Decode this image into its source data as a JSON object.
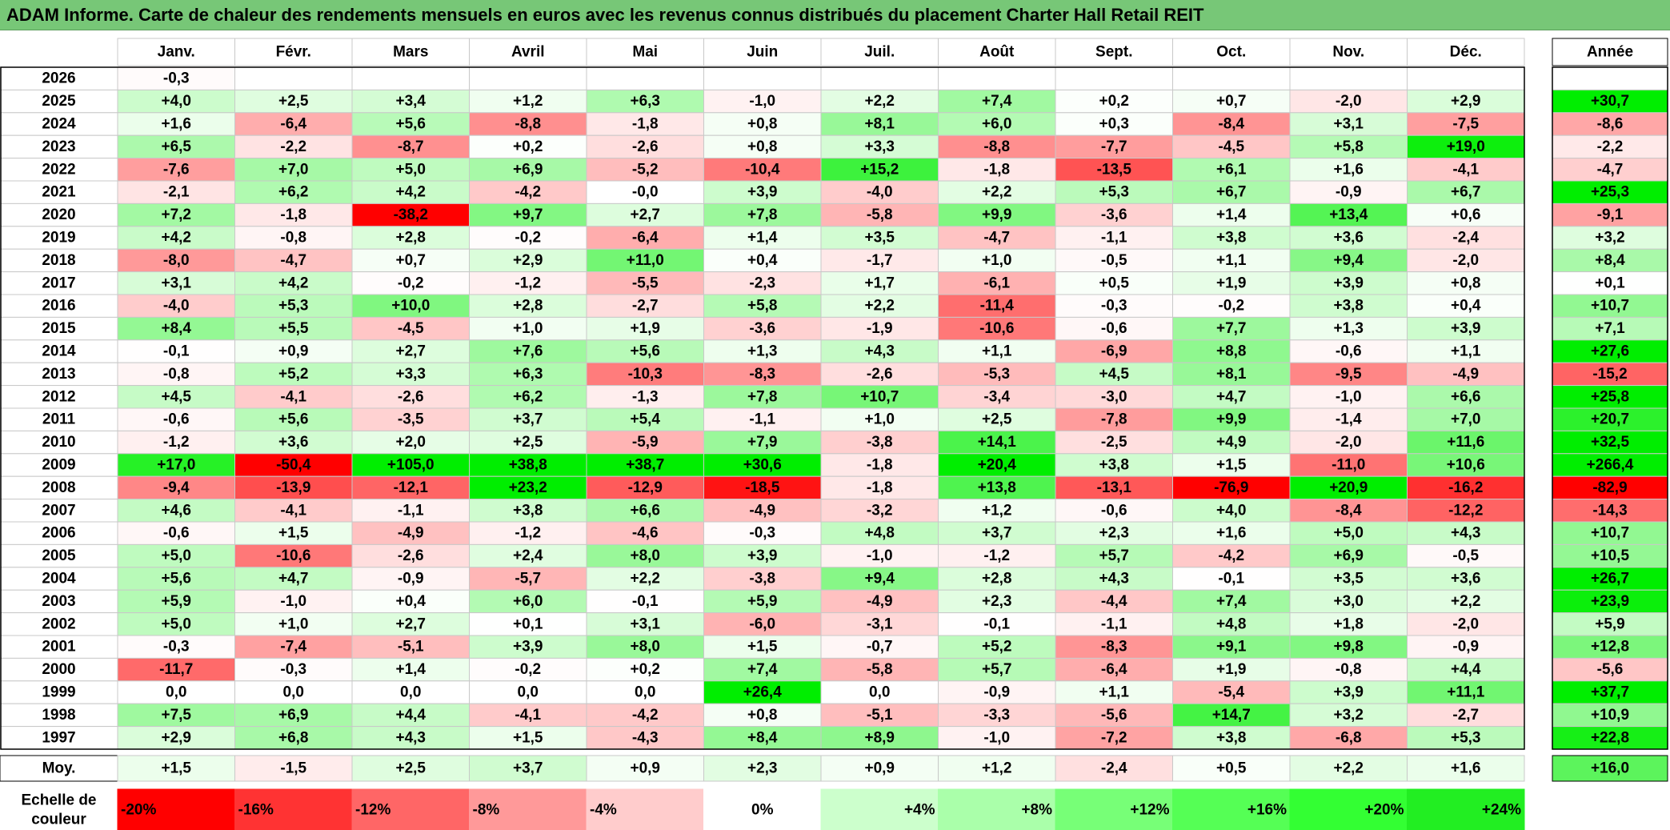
{
  "title": "ADAM Informe. Carte de chaleur des rendements mensuels en euros avec les revenus connus distribués du placement Charter Hall Retail REIT",
  "chart_data": {
    "type": "heatmap",
    "months": [
      "Janv.",
      "Févr.",
      "Mars",
      "Avril",
      "Mai",
      "Juin",
      "Juil.",
      "Août",
      "Sept.",
      "Oct.",
      "Nov.",
      "Déc."
    ],
    "annual_header": "Année",
    "rows": [
      {
        "year": "2026",
        "values": [
          "-0,3",
          "",
          "",
          "",
          "",
          "",
          "",
          "",
          "",
          "",
          "",
          ""
        ],
        "annual": ""
      },
      {
        "year": "2025",
        "values": [
          "+4,0",
          "+2,5",
          "+3,4",
          "+1,2",
          "+6,3",
          "-1,0",
          "+2,2",
          "+7,4",
          "+0,2",
          "+0,7",
          "-2,0",
          "+2,9"
        ],
        "annual": "+30,7"
      },
      {
        "year": "2024",
        "values": [
          "+1,6",
          "-6,4",
          "+5,6",
          "-8,8",
          "-1,8",
          "+0,8",
          "+8,1",
          "+6,0",
          "+0,3",
          "-8,4",
          "+3,1",
          "-7,5"
        ],
        "annual": "-8,6"
      },
      {
        "year": "2023",
        "values": [
          "+6,5",
          "-2,2",
          "-8,7",
          "+0,2",
          "-2,6",
          "+0,8",
          "+3,3",
          "-8,8",
          "-7,7",
          "-4,5",
          "+5,8",
          "+19,0"
        ],
        "annual": "-2,2"
      },
      {
        "year": "2022",
        "values": [
          "-7,6",
          "+7,0",
          "+5,0",
          "+6,9",
          "-5,2",
          "-10,4",
          "+15,2",
          "-1,8",
          "-13,5",
          "+6,1",
          "+1,6",
          "-4,1"
        ],
        "annual": "-4,7"
      },
      {
        "year": "2021",
        "values": [
          "-2,1",
          "+6,2",
          "+4,2",
          "-4,2",
          "-0,0",
          "+3,9",
          "-4,0",
          "+2,2",
          "+5,3",
          "+6,7",
          "-0,9",
          "+6,7"
        ],
        "annual": "+25,3"
      },
      {
        "year": "2020",
        "values": [
          "+7,2",
          "-1,8",
          "-38,2",
          "+9,7",
          "+2,7",
          "+7,8",
          "-5,8",
          "+9,9",
          "-3,6",
          "+1,4",
          "+13,4",
          "+0,6"
        ],
        "annual": "-9,1"
      },
      {
        "year": "2019",
        "values": [
          "+4,2",
          "-0,8",
          "+2,8",
          "-0,2",
          "-6,4",
          "+1,4",
          "+3,5",
          "-4,7",
          "-1,1",
          "+3,8",
          "+3,6",
          "-2,4"
        ],
        "annual": "+3,2"
      },
      {
        "year": "2018",
        "values": [
          "-8,0",
          "-4,7",
          "+0,7",
          "+2,9",
          "+11,0",
          "+0,4",
          "-1,7",
          "+1,0",
          "-0,5",
          "+1,1",
          "+9,4",
          "-2,0"
        ],
        "annual": "+8,4"
      },
      {
        "year": "2017",
        "values": [
          "+3,1",
          "+4,2",
          "-0,2",
          "-1,2",
          "-5,5",
          "-2,3",
          "+1,7",
          "-6,1",
          "+0,5",
          "+1,9",
          "+3,9",
          "+0,8"
        ],
        "annual": "+0,1"
      },
      {
        "year": "2016",
        "values": [
          "-4,0",
          "+5,3",
          "+10,0",
          "+2,8",
          "-2,7",
          "+5,8",
          "+2,2",
          "-11,4",
          "-0,3",
          "-0,2",
          "+3,8",
          "+0,4"
        ],
        "annual": "+10,7"
      },
      {
        "year": "2015",
        "values": [
          "+8,4",
          "+5,5",
          "-4,5",
          "+1,0",
          "+1,9",
          "-3,6",
          "-1,9",
          "-10,6",
          "-0,6",
          "+7,7",
          "+1,3",
          "+3,9"
        ],
        "annual": "+7,1"
      },
      {
        "year": "2014",
        "values": [
          "-0,1",
          "+0,9",
          "+2,7",
          "+7,6",
          "+5,6",
          "+1,3",
          "+4,3",
          "+1,1",
          "-6,9",
          "+8,8",
          "-0,6",
          "+1,1"
        ],
        "annual": "+27,6"
      },
      {
        "year": "2013",
        "values": [
          "-0,8",
          "+5,2",
          "+3,3",
          "+6,3",
          "-10,3",
          "-8,3",
          "-2,6",
          "-5,3",
          "+4,5",
          "+8,1",
          "-9,5",
          "-4,9"
        ],
        "annual": "-15,2"
      },
      {
        "year": "2012",
        "values": [
          "+4,5",
          "-4,1",
          "-2,6",
          "+6,2",
          "-1,3",
          "+7,8",
          "+10,7",
          "-3,4",
          "-3,0",
          "+4,7",
          "-1,0",
          "+6,6"
        ],
        "annual": "+25,8"
      },
      {
        "year": "2011",
        "values": [
          "-0,6",
          "+5,6",
          "-3,5",
          "+3,7",
          "+5,4",
          "-1,1",
          "+1,0",
          "+2,5",
          "-7,8",
          "+9,9",
          "-1,4",
          "+7,0"
        ],
        "annual": "+20,7"
      },
      {
        "year": "2010",
        "values": [
          "-1,2",
          "+3,6",
          "+2,0",
          "+2,5",
          "-5,9",
          "+7,9",
          "-3,8",
          "+14,1",
          "-2,5",
          "+4,9",
          "-2,0",
          "+11,6"
        ],
        "annual": "+32,5"
      },
      {
        "year": "2009",
        "values": [
          "+17,0",
          "-50,4",
          "+105,0",
          "+38,8",
          "+38,7",
          "+30,6",
          "-1,8",
          "+20,4",
          "+3,8",
          "+1,5",
          "-11,0",
          "+10,6"
        ],
        "annual": "+266,4"
      },
      {
        "year": "2008",
        "values": [
          "-9,4",
          "-13,9",
          "-12,1",
          "+23,2",
          "-12,9",
          "-18,5",
          "-1,8",
          "+13,8",
          "-13,1",
          "-76,9",
          "+20,9",
          "-16,2"
        ],
        "annual": "-82,9"
      },
      {
        "year": "2007",
        "values": [
          "+4,6",
          "-4,1",
          "-1,1",
          "+3,8",
          "+6,6",
          "-4,9",
          "-3,2",
          "+1,2",
          "-0,6",
          "+4,0",
          "-8,4",
          "-12,2"
        ],
        "annual": "-14,3"
      },
      {
        "year": "2006",
        "values": [
          "-0,6",
          "+1,5",
          "-4,9",
          "-1,2",
          "-4,6",
          "-0,3",
          "+4,8",
          "+3,7",
          "+2,3",
          "+1,6",
          "+5,0",
          "+4,3"
        ],
        "annual": "+10,7"
      },
      {
        "year": "2005",
        "values": [
          "+5,0",
          "-10,6",
          "-2,6",
          "+2,4",
          "+8,0",
          "+3,9",
          "-1,0",
          "-1,2",
          "+5,7",
          "-4,2",
          "+6,9",
          "-0,5"
        ],
        "annual": "+10,5"
      },
      {
        "year": "2004",
        "values": [
          "+5,6",
          "+4,7",
          "-0,9",
          "-5,7",
          "+2,2",
          "-3,8",
          "+9,4",
          "+2,8",
          "+4,3",
          "-0,1",
          "+3,5",
          "+3,6"
        ],
        "annual": "+26,7"
      },
      {
        "year": "2003",
        "values": [
          "+5,9",
          "-1,0",
          "+0,4",
          "+6,0",
          "-0,1",
          "+5,9",
          "-4,9",
          "+2,3",
          "-4,4",
          "+7,4",
          "+3,0",
          "+2,2"
        ],
        "annual": "+23,9"
      },
      {
        "year": "2002",
        "values": [
          "+5,0",
          "+1,0",
          "+2,7",
          "+0,1",
          "+3,1",
          "-6,0",
          "-3,1",
          "-0,1",
          "-1,1",
          "+4,8",
          "+1,8",
          "-2,0"
        ],
        "annual": "+5,9"
      },
      {
        "year": "2001",
        "values": [
          "-0,3",
          "-7,4",
          "-5,1",
          "+3,9",
          "+8,0",
          "+1,5",
          "-0,7",
          "+5,2",
          "-8,3",
          "+9,1",
          "+9,8",
          "-0,9"
        ],
        "annual": "+12,8"
      },
      {
        "year": "2000",
        "values": [
          "-11,7",
          "-0,3",
          "+1,4",
          "-0,2",
          "+0,2",
          "+7,4",
          "-5,8",
          "+5,7",
          "-6,4",
          "+1,9",
          "-0,8",
          "+4,4"
        ],
        "annual": "-5,6"
      },
      {
        "year": "1999",
        "values": [
          "0,0",
          "0,0",
          "0,0",
          "0,0",
          "0,0",
          "+26,4",
          "0,0",
          "-0,9",
          "+1,1",
          "-5,4",
          "+3,9",
          "+11,1"
        ],
        "annual": "+37,7"
      },
      {
        "year": "1998",
        "values": [
          "+7,5",
          "+6,9",
          "+4,4",
          "-4,1",
          "-4,2",
          "+0,8",
          "-5,1",
          "-3,3",
          "-5,6",
          "+14,7",
          "+3,2",
          "-2,7"
        ],
        "annual": "+10,9"
      },
      {
        "year": "1997",
        "values": [
          "+2,9",
          "+6,8",
          "+4,3",
          "+1,5",
          "-4,3",
          "+8,4",
          "+8,9",
          "-1,0",
          "-7,2",
          "+3,8",
          "-6,8",
          "+5,3"
        ],
        "annual": "+22,8"
      }
    ],
    "average": {
      "label": "Moy.",
      "values": [
        "+1,5",
        "-1,5",
        "+2,5",
        "+3,7",
        "+0,9",
        "+2,3",
        "+0,9",
        "+1,2",
        "-2,4",
        "+0,5",
        "+2,2",
        "+1,6"
      ],
      "annual": "+16,0"
    },
    "scale": {
      "label_line1": "Echelle de",
      "label_line2": "couleur",
      "items": [
        "-20%",
        "-16%",
        "-12%",
        "-8%",
        "-4%",
        "0%",
        "+4%",
        "+8%",
        "+12%",
        "+16%",
        "+20%",
        "+24%"
      ],
      "values": [
        -20,
        -16,
        -12,
        -8,
        -4,
        0,
        4,
        8,
        12,
        16,
        20,
        24
      ],
      "colors": [
        "#ff0000",
        "#ff3333",
        "#ff6666",
        "#ff9999",
        "#ffcccc",
        "#ffffff",
        "#ccffcc",
        "#aaffaa",
        "#77ff77",
        "#55ff55",
        "#33ff33",
        "#22ee22"
      ]
    },
    "colors": {
      "negative_max": "#ff0000",
      "neutral": "#ffffff",
      "positive_max": "#00ee00",
      "title_bar": "#77c777"
    }
  }
}
